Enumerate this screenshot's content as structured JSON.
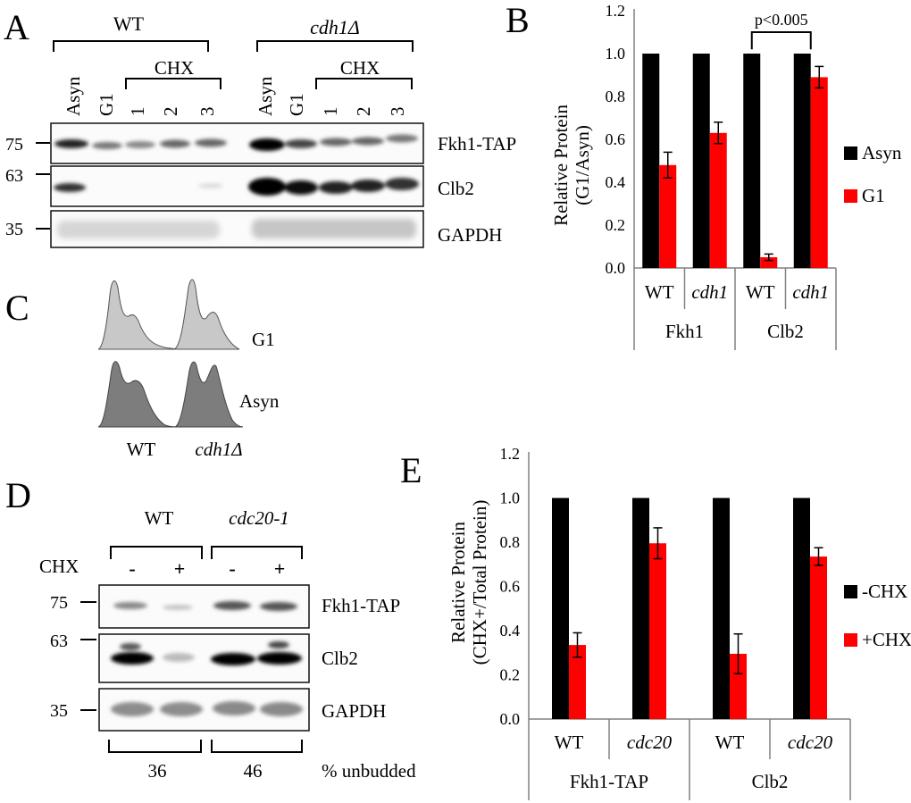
{
  "panels": {
    "a": "A",
    "b": "B",
    "c": "C",
    "d": "D",
    "e": "E"
  },
  "panel_a": {
    "groups": [
      {
        "label": "WT",
        "italic": false
      },
      {
        "label": "cdh1Δ",
        "italic": true
      }
    ],
    "lanes": [
      "Asyn",
      "G1",
      "1",
      "2",
      "3",
      "Asyn",
      "G1",
      "1",
      "2",
      "3"
    ],
    "chx_label": "CHX",
    "markers": [
      "75",
      "63",
      "35"
    ],
    "bands": [
      "Fkh1-TAP",
      "Clb2",
      "GAPDH"
    ]
  },
  "panel_c": {
    "rows": [
      "G1",
      "Asyn"
    ],
    "columns": [
      {
        "label": "WT",
        "italic": false
      },
      {
        "label": "cdh1Δ",
        "italic": true
      }
    ]
  },
  "panel_d": {
    "groups": [
      {
        "label": "WT",
        "italic": false
      },
      {
        "label": "cdc20-1",
        "italic": true
      }
    ],
    "chx_label": "CHX",
    "lanes": [
      "-",
      "+",
      "-",
      "+"
    ],
    "markers": [
      "75",
      "63",
      "35"
    ],
    "bands": [
      "Fkh1-TAP",
      "Clb2",
      "GAPDH"
    ],
    "unbudded": [
      "36",
      "46"
    ],
    "unbudded_label": "% unbudded"
  },
  "colors": {
    "black_bar": "#000000",
    "red_bar": "#ff0000"
  },
  "chart_data": [
    {
      "id": "B",
      "type": "bar",
      "ylabel": "Relative Protein (G1/Asyn)",
      "ylabel_lines": [
        "Relative Protein",
        "(G1/Asyn)"
      ],
      "ylim": [
        0,
        1.2
      ],
      "yticks": [
        "0.0",
        "0.2",
        "0.4",
        "0.6",
        "0.8",
        "1.0",
        "1.2"
      ],
      "categories": [
        {
          "label": "WT",
          "italic": false,
          "group": "Fkh1"
        },
        {
          "label": "cdh1",
          "italic": true,
          "group": "Fkh1"
        },
        {
          "label": "WT",
          "italic": false,
          "group": "Clb2"
        },
        {
          "label": "cdh1",
          "italic": true,
          "group": "Clb2"
        }
      ],
      "groups": [
        "Fkh1",
        "Clb2"
      ],
      "series": [
        {
          "name": "Asyn",
          "color": "#000000",
          "values": [
            1.0,
            1.0,
            1.0,
            1.0
          ],
          "errors": [
            0,
            0,
            0,
            0
          ]
        },
        {
          "name": "G1",
          "color": "#ff0000",
          "values": [
            0.48,
            0.63,
            0.05,
            0.89
          ],
          "errors": [
            0.06,
            0.05,
            0.015,
            0.05
          ]
        }
      ],
      "annotation": "p<0.005",
      "legend": "right"
    },
    {
      "id": "E",
      "type": "bar",
      "ylabel": "Relative Protein (CHX+/Total Protein)",
      "ylabel_lines": [
        "Relative Protein",
        "(CHX+/Total Protein)"
      ],
      "ylim": [
        0,
        1.2
      ],
      "yticks": [
        "0.0",
        "0.2",
        "0.4",
        "0.6",
        "0.8",
        "1.0",
        "1.2"
      ],
      "categories": [
        {
          "label": "WT",
          "italic": false,
          "group": "Fkh1-TAP"
        },
        {
          "label": "cdc20",
          "italic": true,
          "group": "Fkh1-TAP"
        },
        {
          "label": "WT",
          "italic": false,
          "group": "Clb2"
        },
        {
          "label": "cdc20",
          "italic": true,
          "group": "Clb2"
        }
      ],
      "groups": [
        "Fkh1-TAP",
        "Clb2"
      ],
      "series": [
        {
          "name": "-CHX",
          "color": "#000000",
          "values": [
            1.0,
            1.0,
            1.0,
            1.0
          ],
          "errors": [
            0,
            0,
            0,
            0
          ]
        },
        {
          "name": "+CHX",
          "color": "#ff0000",
          "values": [
            0.335,
            0.795,
            0.295,
            0.735
          ],
          "errors": [
            0.055,
            0.07,
            0.09,
            0.04
          ]
        }
      ],
      "legend": "right"
    }
  ]
}
